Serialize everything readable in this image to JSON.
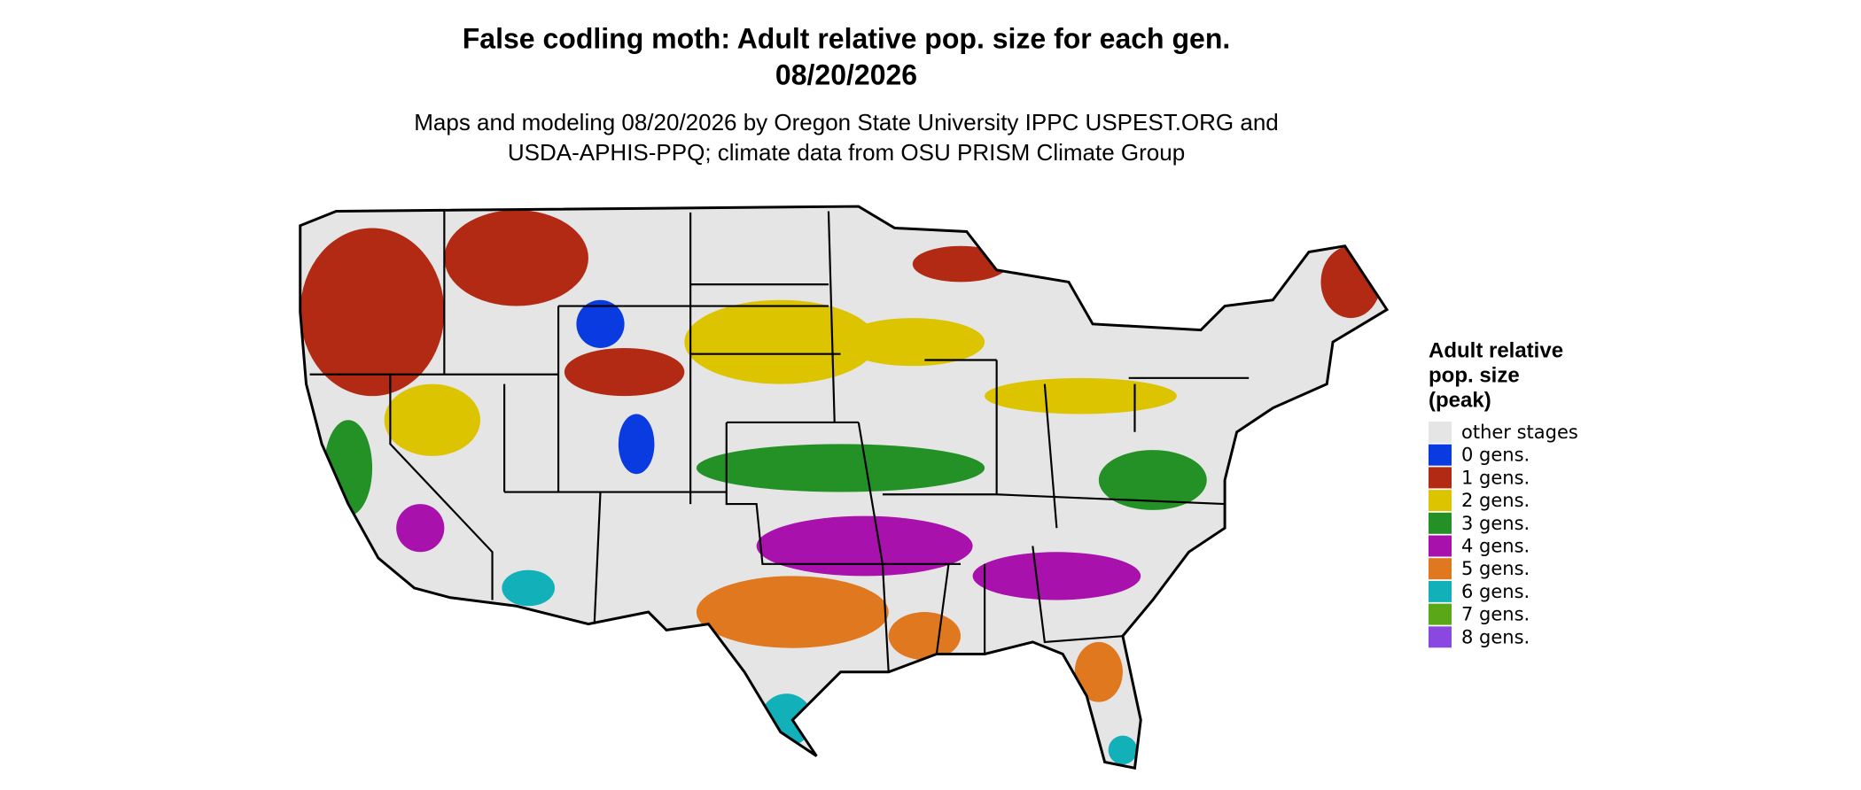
{
  "header": {
    "title": [
      "False codling moth: Adult relative pop. size for each gen.",
      "08/20/2026"
    ],
    "subtitle": [
      "Maps and modeling 08/20/2026 by Oregon State University IPPC USPEST.ORG and",
      "USDA-APHIS-PPQ; climate data from OSU PRISM Climate Group"
    ]
  },
  "legend": {
    "title": [
      "Adult relative",
      "pop. size",
      "(peak)"
    ],
    "items": [
      {
        "label": "other stages",
        "color": "#e5e5e5"
      },
      {
        "label": "0 gens.",
        "color": "#0a3be0"
      },
      {
        "label": "1 gens.",
        "color": "#b22a14"
      },
      {
        "label": "2 gens.",
        "color": "#dcc400"
      },
      {
        "label": "3 gens.",
        "color": "#239125"
      },
      {
        "label": "4 gens.",
        "color": "#a811ac"
      },
      {
        "label": "5 gens.",
        "color": "#e07820"
      },
      {
        "label": "6 gens.",
        "color": "#12b0b8"
      },
      {
        "label": "7 gens.",
        "color": "#5aa818"
      },
      {
        "label": "8 gens.",
        "color": "#8a48e0"
      }
    ]
  }
}
